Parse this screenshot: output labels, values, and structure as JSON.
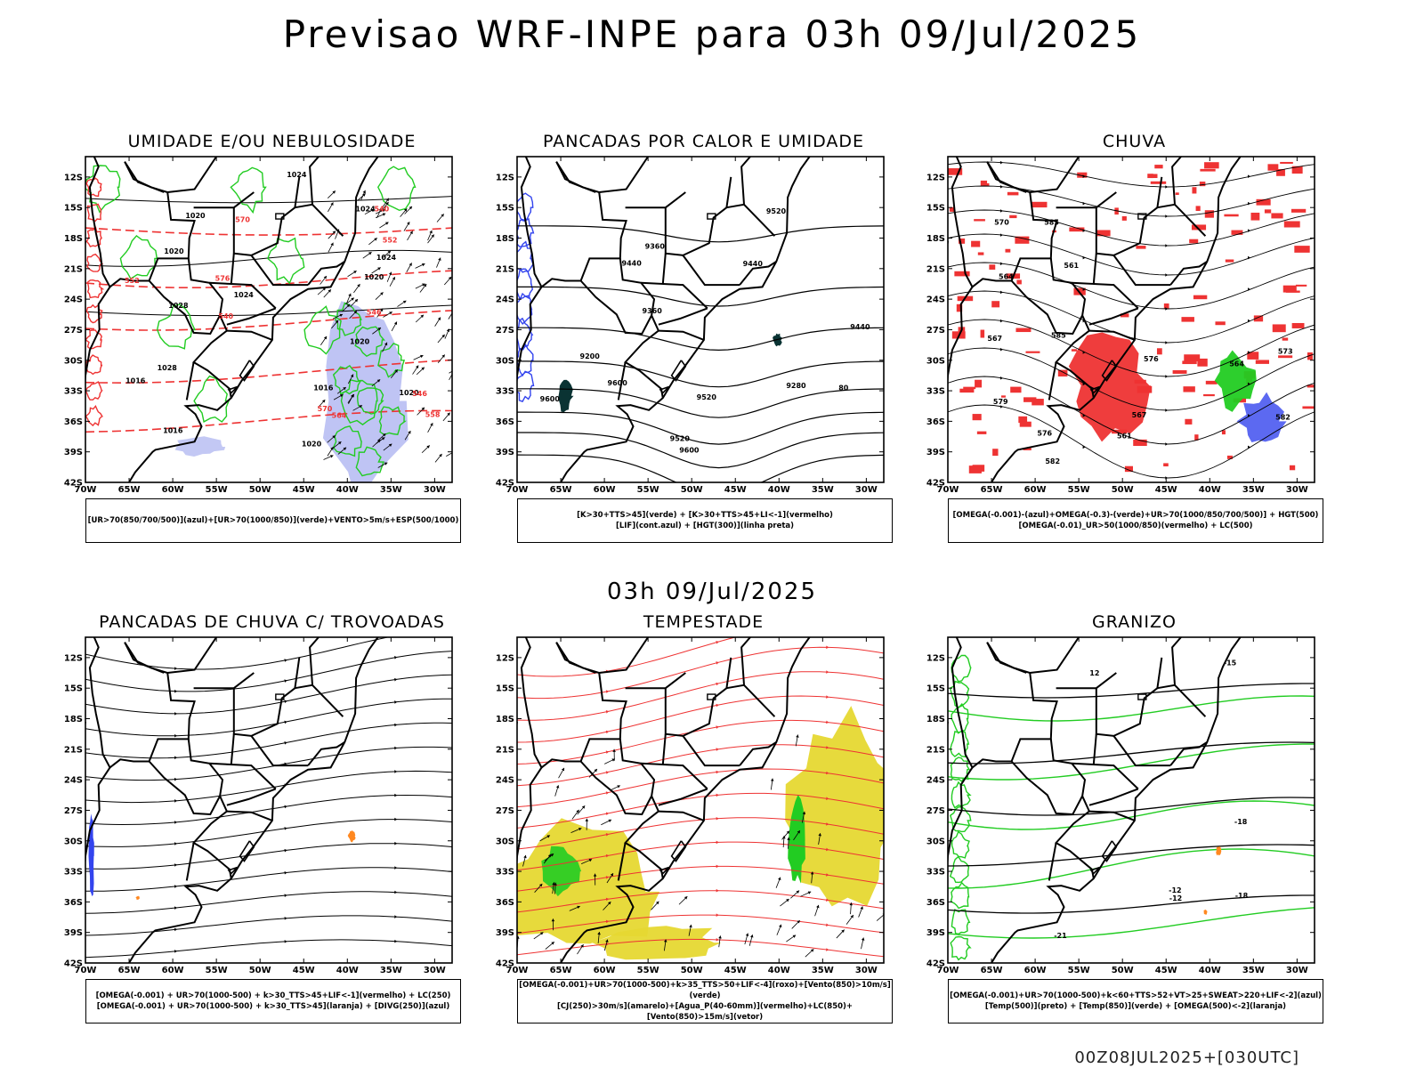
{
  "header": {
    "title": "Previsao WRF-INPE  para 03h 09/Jul/2025",
    "mid_date": "03h 09/Jul/2025",
    "footer": "00Z08JUL2025+[030UTC]"
  },
  "axes": {
    "lat_ticks": [
      "12S",
      "15S",
      "18S",
      "21S",
      "24S",
      "27S",
      "30S",
      "33S",
      "36S",
      "39S",
      "42S"
    ],
    "lon_ticks": [
      "70W",
      "65W",
      "60W",
      "55W",
      "50W",
      "45W",
      "40W",
      "35W",
      "30W"
    ]
  },
  "colors": {
    "red": "#ee3333",
    "green": "#22cc22",
    "blue": "#3344ee",
    "navy": "#0000cc",
    "lavender": "#aab0f0",
    "orange": "#ff8820",
    "yellow": "#e6d832",
    "darkteal": "#0a3333"
  },
  "panels": [
    {
      "title": "UMIDADE E/OU NEBULOSIDADE",
      "legend": [
        "[UR>70(850/700/500)](azul)+[UR>70(1000/850)](verde)+VENTO>5m/s+ESP(500/1000)"
      ],
      "labels": [
        "1016",
        "1016",
        "1016",
        "1020",
        "1020",
        "1020",
        "1024",
        "1024",
        "1028",
        "1028",
        "1024",
        "1020",
        "1020",
        "1024",
        "570",
        "570",
        "564",
        "558",
        "552",
        "546",
        "540",
        "576",
        "552",
        "546",
        "540",
        "1020"
      ]
    },
    {
      "title": "PANCADAS POR CALOR E UMIDADE",
      "legend": [
        "[K>30+TTS>45](verde) + [K>30+TTS>45+LI<-1](vermelho)",
        "[LIF](cont.azul) + [HGT(300)](linha preta)"
      ],
      "labels": [
        "9600",
        "9600",
        "9600",
        "9520",
        "9520",
        "9520",
        "9440",
        "9440",
        "9440",
        "9360",
        "9360",
        "9280",
        "9200",
        "80"
      ]
    },
    {
      "title": "CHUVA",
      "legend": [
        "[OMEGA(-0.001)-(azul)+OMEGA(-0.3)-(verde)+UR>70(1000/850/700/500)] + HGT(500)",
        "[OMEGA(-0.01)_UR>50(1000/850)(vermelho) + LC(500)"
      ],
      "labels": [
        "585",
        "585",
        "582",
        "582",
        "576",
        "579",
        "576",
        "573",
        "570",
        "567",
        "564",
        "561",
        "561",
        "564",
        "567"
      ]
    },
    {
      "title": "PANCADAS DE CHUVA C/ TROVOADAS",
      "legend": [
        "[OMEGA(-0.001) + UR>70(1000-500) + k>30_TTS>45+LIF<-1](vermelho) + LC(250)",
        "[OMEGA(-0.001) + UR>70(1000-500) + k>30_TTS>45](laranja) + [DIVG(250)](azul)"
      ],
      "labels": []
    },
    {
      "title": "TEMPESTADE",
      "legend": [
        "[OMEGA(-0.001)+UR>70(1000-500)+k>35_TTS>50+LIF<-4](roxo)+[Vento(850)>10m/s](verde)",
        "[CJ(250)>30m/s](amarelo)+[Agua_P(40-60mm)](vermelho)+LC(850)+[Vento(850)>15m/s](vetor)"
      ],
      "labels": []
    },
    {
      "title": "GRANIZO",
      "legend": [
        "[OMEGA(-0.001)+UR>70(1000-500)+k<60+TTS>52+VT>25+SWEAT>220+LIF<-2](azul)",
        "[Temp(500)](preto) + [Temp(850)](verde) + [OMEGA(500)<-2](laranja)"
      ],
      "labels": [
        "12",
        "-12",
        "-15",
        "-18",
        "-12",
        "-18",
        "-21"
      ]
    }
  ]
}
